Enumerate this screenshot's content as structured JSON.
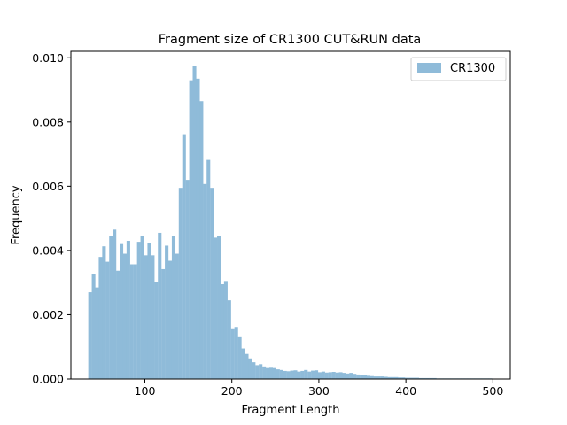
{
  "chart_data": {
    "type": "bar",
    "title": "Fragment size of CR1300 CUT&RUN data",
    "xlabel": "Fragment Length",
    "ylabel": "Frequency",
    "xlim": [
      15,
      520
    ],
    "ylim": [
      0,
      0.0102
    ],
    "xticks": [
      100,
      200,
      300,
      400,
      500
    ],
    "yticks": [
      0.0,
      0.002,
      0.004,
      0.006,
      0.008,
      0.01
    ],
    "ytick_labels": [
      "0.000",
      "0.002",
      "0.004",
      "0.006",
      "0.008",
      "0.010"
    ],
    "legend": {
      "position": "top-right"
    },
    "series": [
      {
        "name": "CR1300",
        "color": "#8fbbd9",
        "bin_start": 35,
        "bin_width": 4,
        "values": [
          0.0027,
          0.00328,
          0.00285,
          0.0038,
          0.00413,
          0.00365,
          0.00445,
          0.00465,
          0.00337,
          0.0042,
          0.0039,
          0.0043,
          0.00357,
          0.00357,
          0.00427,
          0.00445,
          0.00385,
          0.00422,
          0.00385,
          0.00302,
          0.00455,
          0.00342,
          0.00415,
          0.00368,
          0.00445,
          0.0039,
          0.00595,
          0.00762,
          0.0062,
          0.0093,
          0.00975,
          0.00935,
          0.00865,
          0.00607,
          0.00682,
          0.00595,
          0.0044,
          0.00445,
          0.00295,
          0.00305,
          0.00245,
          0.00155,
          0.00162,
          0.0013,
          0.00095,
          0.00078,
          0.00064,
          0.00052,
          0.00043,
          0.00046,
          0.00039,
          0.00034,
          0.00035,
          0.00034,
          0.0003,
          0.00028,
          0.00025,
          0.00024,
          0.00026,
          0.00027,
          0.00023,
          0.00025,
          0.00028,
          0.00023,
          0.00026,
          0.00027,
          0.00021,
          0.00023,
          0.0002,
          0.00021,
          0.00022,
          0.0002,
          0.00021,
          0.00019,
          0.00017,
          0.00019,
          0.00016,
          0.00014,
          0.00013,
          0.00011,
          0.0001,
          9e-05,
          8e-05,
          8e-05,
          8e-05,
          7e-05,
          6e-05,
          6e-05,
          6e-05,
          5e-05,
          5e-05,
          4e-05,
          4e-05,
          4e-05,
          4e-05,
          3e-05,
          3e-05,
          3e-05,
          3e-05,
          3e-05,
          2e-05,
          2e-05,
          2e-05,
          2e-05,
          2e-05,
          2e-05,
          2e-05,
          2e-05,
          2e-05,
          2e-05,
          2e-05,
          2e-05,
          2e-05,
          2e-05,
          2e-05,
          2e-05
        ]
      }
    ]
  }
}
